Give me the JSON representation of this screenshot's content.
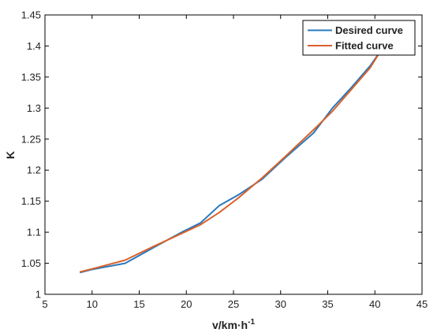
{
  "chart_data": {
    "type": "line",
    "title": "",
    "top_text": "",
    "xlabel": "v/km·h",
    "xlabel_sup": "-1",
    "ylabel": "K",
    "xlim": [
      5,
      45
    ],
    "ylim": [
      1,
      1.45
    ],
    "xticks": [
      5,
      10,
      15,
      20,
      25,
      30,
      35,
      40,
      45
    ],
    "yticks": [
      1,
      1.05,
      1.1,
      1.15,
      1.2,
      1.25,
      1.3,
      1.35,
      1.4,
      1.45
    ],
    "xtick_labels": [
      "5",
      "10",
      "15",
      "20",
      "25",
      "30",
      "35",
      "40",
      "45"
    ],
    "ytick_labels": [
      "1",
      "1.05",
      "1.1",
      "1.15",
      "1.2",
      "1.25",
      "1.3",
      "1.35",
      "1.4",
      "1.45"
    ],
    "grid": false,
    "legend_position": "top-right",
    "series": [
      {
        "name": "Desired curve",
        "color": "#2878bd",
        "x": [
          8.7,
          10,
          13.5,
          16.5,
          19.5,
          21.5,
          23.5,
          25.5,
          28,
          30.5,
          33.5,
          35.5,
          37.5,
          39.5,
          40.6
        ],
        "y": [
          1.035,
          1.04,
          1.05,
          1.075,
          1.1,
          1.115,
          1.143,
          1.16,
          1.185,
          1.22,
          1.26,
          1.3,
          1.333,
          1.368,
          1.392
        ]
      },
      {
        "name": "Fitted curve",
        "color": "#d9622b",
        "x": [
          8.7,
          10,
          13.5,
          16.5,
          19.5,
          21.5,
          23.5,
          25.5,
          28,
          30.5,
          33.5,
          35.5,
          37.5,
          39.5,
          40.6
        ],
        "y": [
          1.036,
          1.041,
          1.055,
          1.077,
          1.098,
          1.112,
          1.132,
          1.155,
          1.187,
          1.222,
          1.265,
          1.295,
          1.33,
          1.365,
          1.392
        ]
      }
    ]
  }
}
